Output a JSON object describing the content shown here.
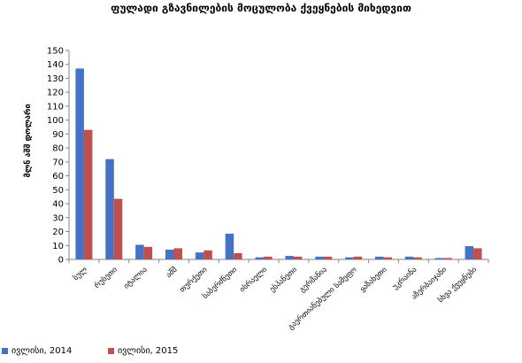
{
  "chart_data": {
    "type": "bar",
    "title": "ფულადი გზავნილების მოცულობა ქვეყნების მიხედვით",
    "ylabel": "მლნ აშშ დოლარი",
    "xlabel": "",
    "ylim": [
      0,
      150
    ],
    "yticks": [
      0,
      10,
      20,
      30,
      40,
      50,
      60,
      70,
      80,
      90,
      100,
      110,
      120,
      130,
      140,
      150
    ],
    "grid": false,
    "legend_position": "bottom",
    "categories": [
      "სულ",
      "რუსეთი",
      "იტალია",
      "აშშ",
      "თურქეთი",
      "საბერძნეთი",
      "ისრაელი",
      "ესპანეთი",
      "გერმანია",
      "გაერთიანებული სამეფო",
      "ყაზახეთი",
      "უკრაინა",
      "აზერბაიჯანი",
      "სხვა ქვეყნები"
    ],
    "series": [
      {
        "name": "ივლისი, 2014",
        "color": "#4472c4",
        "values": [
          137,
          72,
          10.5,
          7,
          5,
          18.5,
          1.5,
          2.5,
          2,
          1.5,
          2,
          2,
          1,
          9.5
        ]
      },
      {
        "name": "ივლისი, 2015",
        "color": "#c0504d",
        "values": [
          93,
          43.5,
          9,
          8,
          6.5,
          4.5,
          2,
          2,
          2,
          2,
          1.5,
          1.5,
          1,
          8
        ]
      }
    ]
  }
}
